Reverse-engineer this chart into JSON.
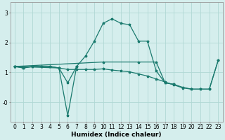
{
  "xlabel": "Humidex (Indice chaleur)",
  "bg_color": "#d5eeed",
  "grid_color": "#b0d8d4",
  "line_color": "#1a7a6e",
  "x_min": -0.5,
  "x_max": 23.5,
  "y_min": -0.65,
  "y_max": 3.35,
  "yticks": [
    0,
    1,
    2,
    3
  ],
  "ytick_labels": [
    "-0",
    "1",
    "2",
    "3"
  ],
  "line1_x": [
    0,
    1,
    2,
    3,
    4,
    5,
    6,
    7,
    8,
    9,
    10,
    11,
    12,
    13,
    14,
    15,
    16,
    17,
    18
  ],
  "line1_y": [
    1.2,
    1.15,
    1.2,
    1.2,
    1.2,
    1.15,
    0.65,
    1.2,
    1.55,
    2.05,
    2.65,
    2.8,
    2.65,
    2.6,
    2.05,
    2.05,
    1.05,
    0.65,
    0.6
  ],
  "line2_x": [
    0,
    5,
    6,
    7
  ],
  "line2_y": [
    1.2,
    1.15,
    -0.45,
    1.2
  ],
  "line3_x": [
    0,
    1,
    2,
    3,
    4,
    5,
    6,
    7,
    8,
    9,
    10,
    11,
    12,
    13,
    14,
    15,
    16,
    17,
    18,
    19,
    20,
    21,
    22,
    23
  ],
  "line3_y": [
    1.2,
    1.15,
    1.2,
    1.2,
    1.2,
    1.15,
    1.1,
    1.1,
    1.1,
    1.1,
    1.12,
    1.08,
    1.05,
    1.02,
    0.95,
    0.88,
    0.78,
    0.68,
    0.58,
    0.48,
    0.44,
    0.44,
    0.44,
    1.4
  ],
  "line4_x": [
    0,
    10,
    14,
    16,
    17,
    18,
    19,
    20,
    21,
    22,
    23
  ],
  "line4_y": [
    1.2,
    1.35,
    1.35,
    1.35,
    0.65,
    0.6,
    0.5,
    0.44,
    0.44,
    0.44,
    1.4
  ],
  "tick_fontsize": 5.5,
  "label_fontsize": 6.5
}
